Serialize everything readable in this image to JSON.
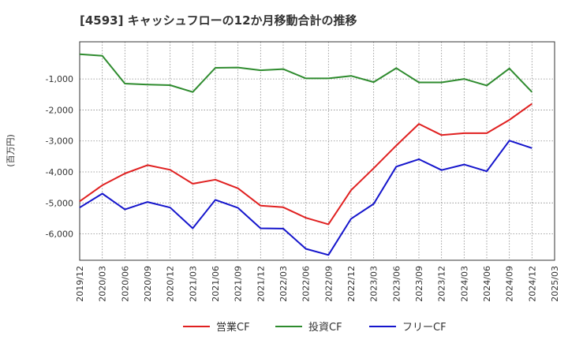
{
  "chart_data": {
    "type": "line",
    "title": "[4593]  キャッシュフローの12か月移動合計の推移",
    "ylabel": "(百万円)",
    "xlabel": "",
    "ylim": [
      -6850,
      200
    ],
    "yticks": [
      -1000,
      -2000,
      -3000,
      -4000,
      -5000,
      -6000
    ],
    "ytick_labels": [
      "-1,000",
      "-2,000",
      "-3,000",
      "-4,000",
      "-5,000",
      "-6,000"
    ],
    "x_tick_labels": [
      "2019/12",
      "2020/03",
      "2020/06",
      "2020/09",
      "2020/12",
      "2021/03",
      "2021/06",
      "2021/09",
      "2021/12",
      "2022/03",
      "2022/06",
      "2022/09",
      "2022/12",
      "2023/03",
      "2023/06",
      "2023/09",
      "2023/12",
      "2024/03",
      "2024/06",
      "2024/09",
      "2024/12",
      "2025/03"
    ],
    "x": [
      "2019/12",
      "2020/03",
      "2020/06",
      "2020/09",
      "2020/12",
      "2021/03",
      "2021/06",
      "2021/09",
      "2021/12",
      "2022/03",
      "2022/06",
      "2022/09",
      "2022/12",
      "2023/03",
      "2023/06",
      "2023/09",
      "2023/12",
      "2024/03",
      "2024/06",
      "2024/09",
      "2024/12"
    ],
    "series": [
      {
        "name": "営業CF",
        "color": "#e02020",
        "values": [
          -4950,
          -4430,
          -4050,
          -3780,
          -3930,
          -4380,
          -4250,
          -4530,
          -5090,
          -5140,
          -5480,
          -5690,
          -4590,
          -3880,
          -3150,
          -2450,
          -2810,
          -2750,
          -2750,
          -2320,
          -1800
        ]
      },
      {
        "name": "投資CF",
        "color": "#2e8b2e",
        "values": [
          -200,
          -250,
          -1150,
          -1180,
          -1200,
          -1420,
          -640,
          -630,
          -720,
          -680,
          -980,
          -980,
          -900,
          -1100,
          -650,
          -1110,
          -1110,
          -1000,
          -1210,
          -660,
          -1420
        ]
      },
      {
        "name": "フリーCF",
        "color": "#1515cc",
        "values": [
          -5150,
          -4700,
          -5210,
          -4970,
          -5150,
          -5820,
          -4900,
          -5160,
          -5820,
          -5830,
          -6480,
          -6680,
          -5510,
          -5030,
          -3830,
          -3590,
          -3940,
          -3760,
          -3980,
          -2990,
          -3230
        ]
      }
    ],
    "legend": "bottom",
    "grid": true
  }
}
